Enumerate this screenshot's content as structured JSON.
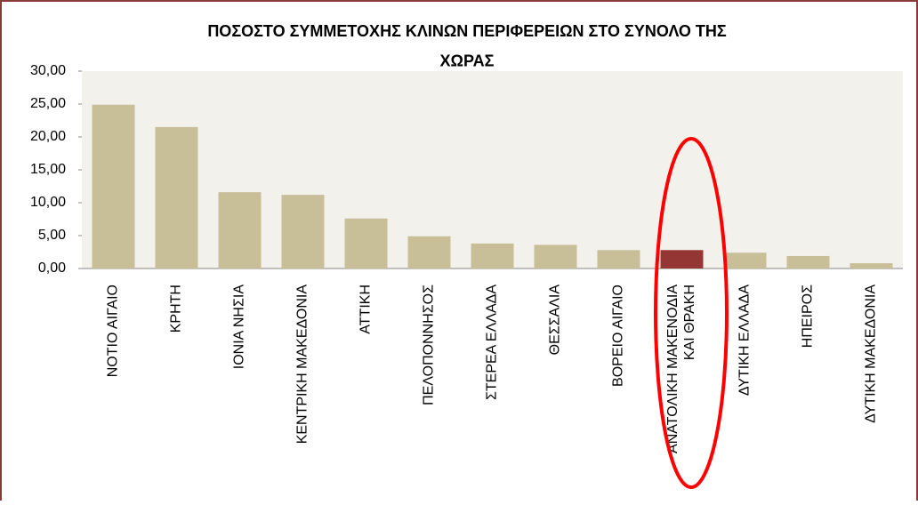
{
  "chart_data": {
    "type": "bar",
    "title": "ΠΟΣΟΣΤΟ ΣΥΜΜΕΤΟΧΗΣ ΚΛΙΝΩΝ ΠΕΡΙΦΕΡΕΙΩΝ ΣΤΟ ΣΥΝΟΛΟ ΤΗΣ\nΧΩΡΑΣ",
    "categories": [
      "ΝΟΤΙΟ ΑΙΓΑΙΟ",
      "ΚΡΗΤΗ",
      "ΙΟΝΙΑ ΝΗΣΙΑ",
      "ΚΕΝΤΡΙΚΗ ΜΑΚΕΔΟΝΙΑ",
      "ΑΤΤΙΚΗ",
      "ΠΕΛΟΠΟΝΝΗΣΟΣ",
      "ΣΤΕΡΕΑ ΕΛΛΑΔΑ",
      "ΘΕΣΣΑΛΙΑ",
      "ΒΟΡΕΙΟ ΑΙΓΑΙΟ",
      "ΑΝΑΤΟΛΙΚΗ ΜΑΚΕΝΟΔΙΑ\nΚΑΙ ΘΡΑΚΗ",
      "ΔΥΤΙΚΗ ΕΛΛΑΔΑ",
      "ΗΠΕΙΡΟΣ",
      "ΔΥΤΙΚΗ ΜΑΚΕΔΟΝΙΑ"
    ],
    "values": [
      24.9,
      21.5,
      11.6,
      11.2,
      7.6,
      4.9,
      3.8,
      3.6,
      2.8,
      2.8,
      2.4,
      1.9,
      0.8
    ],
    "colors": [
      "#c8bf99",
      "#c8bf99",
      "#c8bf99",
      "#c8bf99",
      "#c8bf99",
      "#c8bf99",
      "#c8bf99",
      "#c8bf99",
      "#c8bf99",
      "#943634",
      "#c8bf99",
      "#c8bf99",
      "#c8bf99"
    ],
    "ylim": [
      0,
      30
    ],
    "yticks": [
      {
        "value": 0,
        "label": "0,00"
      },
      {
        "value": 5,
        "label": "5,00"
      },
      {
        "value": 10,
        "label": "10,00"
      },
      {
        "value": 15,
        "label": "15,00"
      },
      {
        "value": 20,
        "label": "20,00"
      },
      {
        "value": 25,
        "label": "25,00"
      },
      {
        "value": 30,
        "label": "30,00"
      }
    ]
  }
}
